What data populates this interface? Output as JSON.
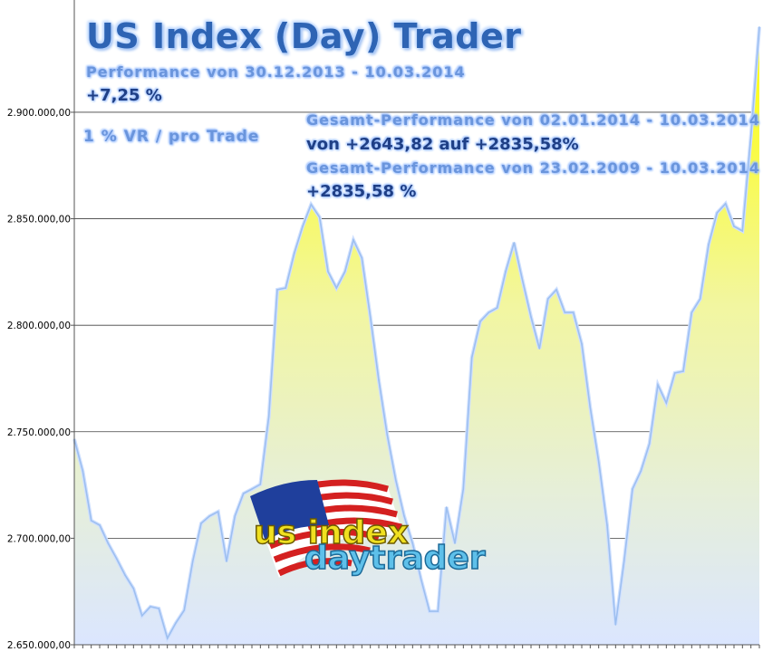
{
  "chart_data": {
    "type": "area",
    "title": "US Index (Day) Trader",
    "xlabel": "",
    "ylabel": "",
    "ylim": [
      2650000,
      2952700
    ],
    "y_ticks": [
      2650000,
      2700000,
      2750000,
      2800000,
      2850000,
      2900000
    ],
    "y_tick_labels": [
      "2.650.000,00",
      "2.700.000,00",
      "2.750.000,00",
      "2.800.000,00",
      "2.850.000,00",
      "2.900.000,00"
    ],
    "grid": "horizontal",
    "legend": "none",
    "values": [
      2746500,
      2731600,
      2708300,
      2706100,
      2697600,
      2690400,
      2682700,
      2676400,
      2663600,
      2667900,
      2667000,
      2653000,
      2660200,
      2666200,
      2689100,
      2707000,
      2710400,
      2712500,
      2689100,
      2710400,
      2721000,
      2723100,
      2725300,
      2757200,
      2816700,
      2817500,
      2833700,
      2846400,
      2856700,
      2850700,
      2825200,
      2817500,
      2825200,
      2840100,
      2831600,
      2803900,
      2774200,
      2748600,
      2727400,
      2710400,
      2697600,
      2680600,
      2665700,
      2665700,
      2714600,
      2697600,
      2723100,
      2784800,
      2801800,
      2806000,
      2808200,
      2825200,
      2838800,
      2820900,
      2803900,
      2789000,
      2812400,
      2816700,
      2806000,
      2806000,
      2791200,
      2761400,
      2735900,
      2706100,
      2659400,
      2689100,
      2723100,
      2731600,
      2744400,
      2772000,
      2763500,
      2777600,
      2778400,
      2806000,
      2812400,
      2837900,
      2852800,
      2857100,
      2846400,
      2844300,
      2889000,
      2940000
    ],
    "colors": {
      "fill_top": "#ffff00",
      "fill_bottom": "#dde8ff",
      "line": "#9dbff0",
      "grid": "#404040"
    }
  },
  "overlay": {
    "title": "US Index (Day) Trader",
    "perf_label": "Performance  von  30.12.2013 - 10.03.2014",
    "perf_value": "+7,25  %",
    "risk": "1 % VR / pro Trade",
    "gesamt1_label": "Gesamt-Performance  von  02.01.2014 - 10.03.2014",
    "gesamt1_value": "von +2643,82 auf  +2835,58%",
    "gesamt2_label": "Gesamt-Performance  von  23.02.2009 - 10.03.2014",
    "gesamt2_value": "+2835,58 %"
  },
  "logo": {
    "line1": "us index",
    "line2": "daytrader"
  }
}
